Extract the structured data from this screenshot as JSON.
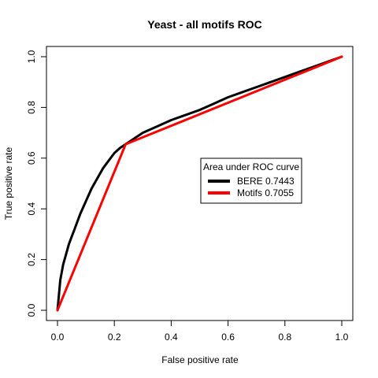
{
  "chart_data": {
    "type": "line",
    "title": "Yeast - all motifs ROC",
    "xlabel": "False positive rate",
    "ylabel": "True positive rate",
    "xlim": [
      0,
      1
    ],
    "ylim": [
      0,
      1
    ],
    "xticks": [
      "0.0",
      "0.2",
      "0.4",
      "0.6",
      "0.8",
      "1.0"
    ],
    "yticks": [
      "0.0",
      "0.2",
      "0.4",
      "0.6",
      "0.8",
      "1.0"
    ],
    "grid": false,
    "legend": {
      "title": "Area under ROC curve",
      "placement": "right-center"
    },
    "series": [
      {
        "name": "BERE 0.7443",
        "color": "#000000",
        "x": [
          0,
          0.005,
          0.01,
          0.02,
          0.03,
          0.04,
          0.05,
          0.06,
          0.08,
          0.1,
          0.12,
          0.14,
          0.16,
          0.18,
          0.2,
          0.22,
          0.24,
          0.26,
          0.3,
          0.35,
          0.4,
          0.45,
          0.5,
          0.55,
          0.6,
          0.65,
          0.7,
          0.75,
          0.8,
          0.85,
          0.9,
          0.95,
          1.0
        ],
        "y": [
          0,
          0.06,
          0.12,
          0.18,
          0.22,
          0.26,
          0.29,
          0.32,
          0.38,
          0.43,
          0.48,
          0.52,
          0.56,
          0.59,
          0.62,
          0.64,
          0.655,
          0.67,
          0.7,
          0.725,
          0.75,
          0.77,
          0.79,
          0.815,
          0.84,
          0.86,
          0.88,
          0.9,
          0.92,
          0.94,
          0.96,
          0.98,
          1.0
        ]
      },
      {
        "name": "Motifs 0.7055",
        "color": "#ff0000",
        "x": [
          0,
          0.24,
          1.0
        ],
        "y": [
          0,
          0.655,
          1.0
        ]
      }
    ]
  }
}
